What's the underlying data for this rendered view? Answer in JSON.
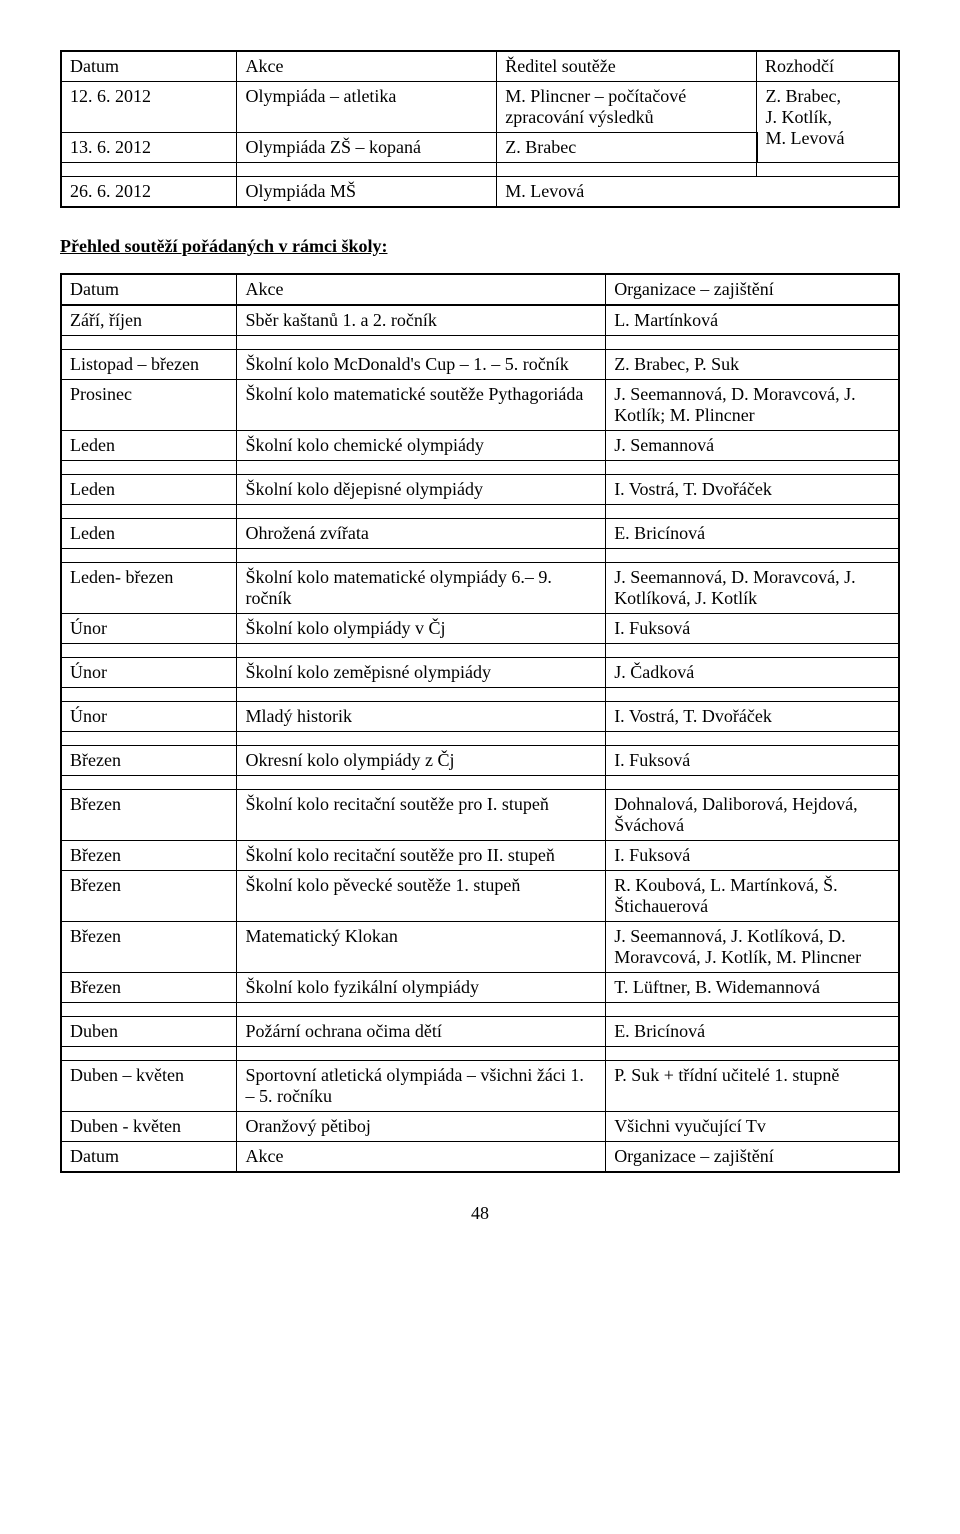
{
  "table1": {
    "headers": [
      "Datum",
      "Akce",
      "Ředitel soutěže",
      "Rozhodčí"
    ],
    "rows": [
      {
        "c0": "12. 6. 2012",
        "c1": "Olympiáda – atletika",
        "c2": "M. Plincner – počítačové zpracování výsledků",
        "c3": "Z. Brabec,\nJ. Kotlík,\nM. Levová",
        "c3rowspan": 2
      },
      {
        "c0": "13. 6. 2012",
        "c1": "Olympiáda ZŠ – kopaná",
        "c2": "Z. Brabec"
      },
      {
        "spacer": true
      },
      {
        "c0": "26. 6. 2012",
        "c1": "Olympiáda MŠ",
        "c2": "M. Levová",
        "c2colspan": 2
      }
    ]
  },
  "section_title": "Přehled soutěží pořádaných v rámci školy:",
  "table2": {
    "headers": [
      "Datum",
      "Akce",
      "Organizace – zajištění"
    ],
    "rows": [
      {
        "c0": "Září, říjen",
        "c1": "Sběr kaštanů 1. a 2. ročník",
        "c2": "L. Martínková"
      },
      {
        "spacer": true
      },
      {
        "c0": "Listopad – březen",
        "c1": "Školní kolo McDonald's Cup – 1. – 5. ročník",
        "c2": "Z. Brabec, P. Suk"
      },
      {
        "c0": "Prosinec",
        "c1": "Školní kolo matematické soutěže Pythagoriáda",
        "c2": "J. Seemannová, D. Moravcová, J. Kotlík; M. Plincner"
      },
      {
        "c0": "Leden",
        "c1": "Školní kolo chemické olympiády",
        "c2": "J. Semannová"
      },
      {
        "spacer": true
      },
      {
        "c0": "Leden",
        "c1": "Školní kolo dějepisné olympiády",
        "c2": "I. Vostrá, T. Dvořáček"
      },
      {
        "spacer": true
      },
      {
        "c0": "Leden",
        "c1": "Ohrožená zvířata",
        "c2": "E. Bricínová"
      },
      {
        "spacer": true
      },
      {
        "c0": "Leden- březen",
        "c1": "Školní kolo matematické olympiády 6.– 9. ročník",
        "c2": "J. Seemannová, D. Moravcová, J. Kotlíková, J. Kotlík"
      },
      {
        "c0": "Únor",
        "c1": "Školní kolo olympiády v Čj",
        "c2": "I. Fuksová"
      },
      {
        "spacer": true
      },
      {
        "c0": "Únor",
        "c1": "Školní kolo zeměpisné olympiády",
        "c2": "J. Čadková"
      },
      {
        "spacer": true
      },
      {
        "c0": "Únor",
        "c1": "Mladý historik",
        "c2": "I. Vostrá, T. Dvořáček"
      },
      {
        "spacer": true
      },
      {
        "c0": "Březen",
        "c1": "Okresní kolo olympiády z Čj",
        "c2": "I. Fuksová"
      },
      {
        "spacer": true
      },
      {
        "c0": "Březen",
        "c1": "Školní kolo recitační soutěže pro I. stupeň",
        "c2": "Dohnalová, Daliborová, Hejdová, Šváchová"
      },
      {
        "c0": "Březen",
        "c1": "Školní kolo recitační soutěže pro II. stupeň",
        "c2": "I. Fuksová"
      },
      {
        "c0": "Březen",
        "c1": "Školní kolo pěvecké soutěže 1. stupeň",
        "c2": "R. Koubová, L. Martínková, Š. Štichauerová"
      },
      {
        "c0": "Březen",
        "c1": "Matematický Klokan",
        "c2": "J. Seemannová, J. Kotlíková, D. Moravcová, J. Kotlík, M. Plincner"
      },
      {
        "c0": "Březen",
        "c1": "Školní kolo fyzikální olympiády",
        "c2": "T. Lüftner, B. Widemannová"
      },
      {
        "spacer": true
      },
      {
        "c0": "Duben",
        "c1": "Požární ochrana očima dětí",
        "c2": "E. Bricínová"
      },
      {
        "spacer": true
      },
      {
        "c0": "Duben – květen",
        "c1": "Sportovní atletická olympiáda – všichni žáci 1. – 5. ročníku",
        "c2": "P. Suk + třídní učitelé 1. stupně"
      },
      {
        "c0": "Duben - květen",
        "c1": "Oranžový pětiboj",
        "c2": "Všichni vyučující Tv"
      },
      {
        "c0": "Datum",
        "c1": "Akce",
        "c2": "Organizace – zajištění"
      }
    ]
  },
  "page_number": "48"
}
